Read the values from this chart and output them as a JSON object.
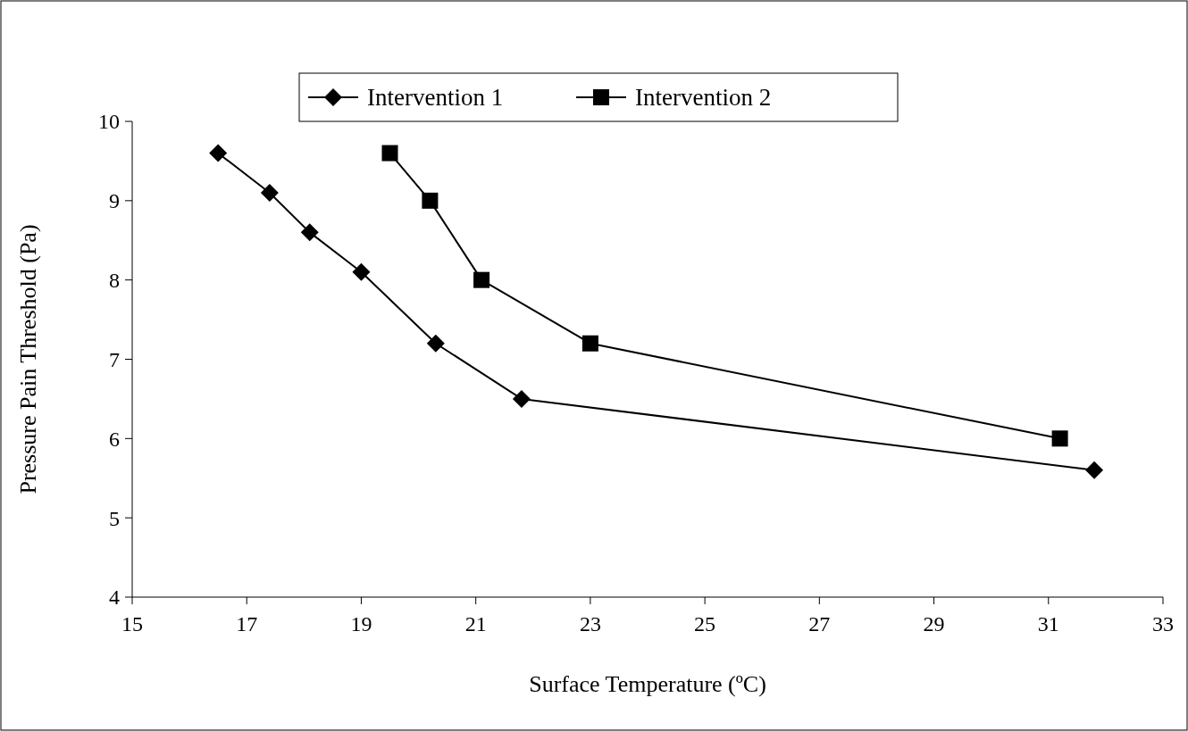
{
  "chart_data": {
    "type": "line",
    "xlabel": "Surface Temperature (ºC)",
    "ylabel": "Pressure Pain Threshold (Pa)",
    "xlim": [
      15,
      33
    ],
    "xticks": [
      15,
      17,
      19,
      21,
      23,
      25,
      27,
      29,
      31,
      33
    ],
    "ylim": [
      4,
      10
    ],
    "yticks": [
      4,
      5,
      6,
      7,
      8,
      9,
      10
    ],
    "grid": false,
    "legend": "top",
    "line_style": "solid",
    "series": [
      {
        "name": "Intervention 1",
        "color": "#000000",
        "marker": "diamond",
        "x": [
          16.5,
          17.4,
          18.1,
          19.0,
          20.3,
          21.8,
          31.8
        ],
        "values": [
          9.6,
          9.1,
          8.6,
          8.1,
          7.2,
          6.5,
          5.6
        ]
      },
      {
        "name": "Intervention 2",
        "color": "#000000",
        "marker": "square",
        "x": [
          19.5,
          20.2,
          21.1,
          23.0,
          31.2
        ],
        "values": [
          9.6,
          9.0,
          8.0,
          7.2,
          6.0
        ]
      }
    ]
  }
}
